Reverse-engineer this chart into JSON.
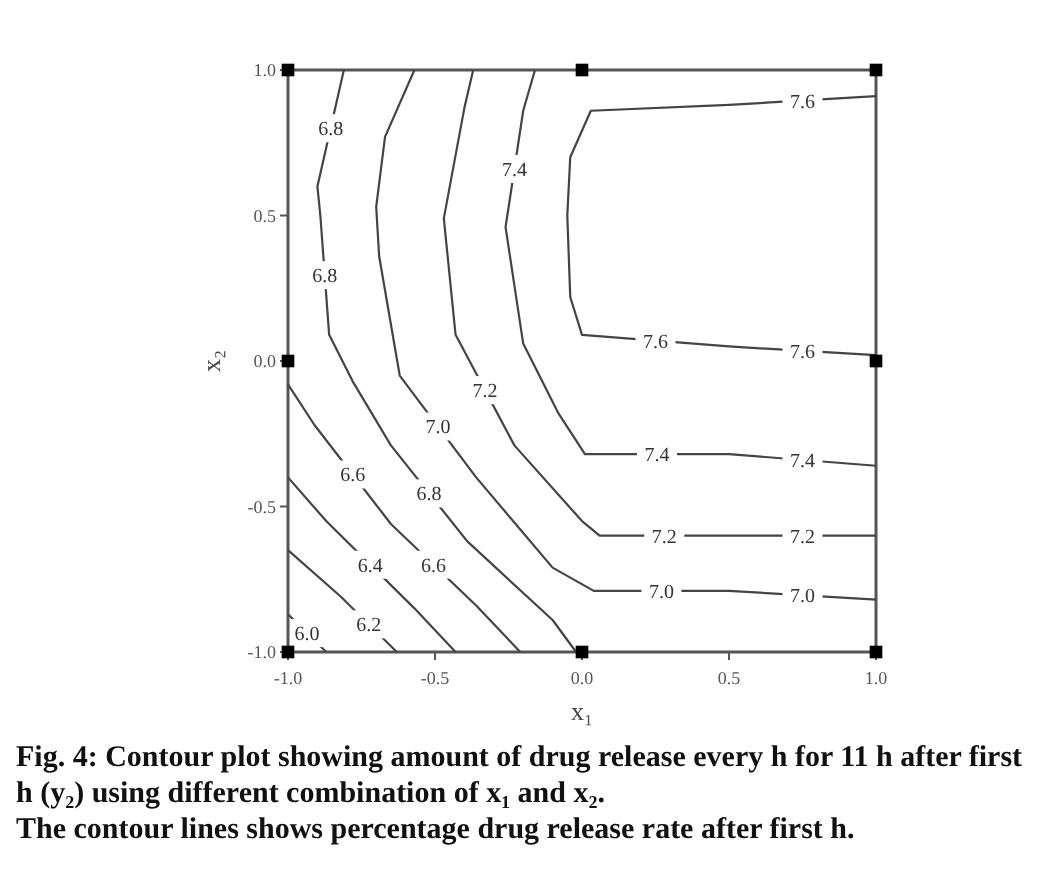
{
  "chart_data": {
    "type": "line",
    "xlabel": "x₁",
    "ylabel": "x₂",
    "xlim": [
      -1,
      1
    ],
    "ylim": [
      -1,
      1
    ],
    "xticks": [
      {
        "value": -1,
        "label": "-1.0"
      },
      {
        "value": -0.5,
        "label": "-0.5"
      },
      {
        "value": 0,
        "label": "0.0"
      },
      {
        "value": 0.5,
        "label": "0.5"
      },
      {
        "value": 1,
        "label": "1.0"
      }
    ],
    "yticks": [
      {
        "value": -1,
        "label": "-1.0"
      },
      {
        "value": -0.5,
        "label": "-0.5"
      },
      {
        "value": 0,
        "label": "0.0"
      },
      {
        "value": 0.5,
        "label": "0.5"
      },
      {
        "value": 1,
        "label": "1.0"
      }
    ],
    "marker": "none",
    "line_style": "solid",
    "grid": false,
    "series": [
      {
        "name": "6.0",
        "color": "#444444",
        "x": [
          -1,
          -0.87
        ],
        "values": [
          -0.87,
          -1
        ]
      },
      {
        "name": "6.2",
        "color": "#444444",
        "x": [
          -1,
          -0.82,
          -0.63
        ],
        "values": [
          -0.65,
          -0.81,
          -1
        ]
      },
      {
        "name": "6.4",
        "color": "#444444",
        "x": [
          -1,
          -0.87,
          -0.57,
          -0.43
        ],
        "values": [
          -0.4,
          -0.55,
          -0.85,
          -1
        ]
      },
      {
        "name": "6.6",
        "color": "#444444",
        "x": [
          -1,
          -0.91,
          -0.65,
          -0.36,
          -0.21
        ],
        "values": [
          -0.08,
          -0.22,
          -0.56,
          -0.84,
          -1
        ]
      },
      {
        "name": "6.8",
        "color": "#444444",
        "x": [
          -0.81,
          -0.9,
          -0.89,
          -0.86,
          -0.78,
          -0.65,
          -0.39,
          -0.1,
          -0.02
        ],
        "values": [
          1,
          0.6,
          0.5,
          0.09,
          -0.07,
          -0.29,
          -0.62,
          -0.89,
          -1
        ]
      },
      {
        "name": "7.0",
        "color": "#444444",
        "x": [
          -0.57,
          -0.67,
          -0.7,
          -0.69,
          -0.62,
          -0.36,
          -0.1,
          0.04,
          0.5,
          1
        ],
        "values": [
          1,
          0.77,
          0.53,
          0.36,
          -0.05,
          -0.4,
          -0.71,
          -0.79,
          -0.79,
          -0.82
        ]
      },
      {
        "name": "7.2",
        "color": "#444444",
        "x": [
          -0.37,
          -0.4,
          -0.47,
          -0.43,
          -0.23,
          0,
          0.06,
          0.5,
          1
        ],
        "values": [
          1,
          0.87,
          0.49,
          0.09,
          -0.29,
          -0.55,
          -0.6,
          -0.6,
          -0.6
        ]
      },
      {
        "name": "7.4",
        "color": "#444444",
        "x": [
          -0.16,
          -0.2,
          -0.26,
          -0.2,
          -0.08,
          0.01,
          0.5,
          1
        ],
        "values": [
          1,
          0.86,
          0.46,
          0.06,
          -0.18,
          -0.32,
          -0.32,
          -0.36
        ]
      },
      {
        "name": "7.6",
        "color": "#444444",
        "x": [
          1,
          0.5,
          0.03,
          -0.04,
          -0.05,
          -0.04,
          0,
          0.5,
          1
        ],
        "values": [
          0.91,
          0.88,
          0.86,
          0.7,
          0.5,
          0.22,
          0.09,
          0.05,
          0.02
        ]
      },
      {
        "type": "scatter",
        "marker": "square",
        "color": "#000000",
        "x": [
          -1,
          0,
          1,
          -1,
          1,
          -1,
          0,
          1
        ],
        "values": [
          1,
          1,
          1,
          0,
          0,
          -1,
          -1,
          -1
        ]
      }
    ],
    "annotations": [
      "Fig. 4: Contour plot showing amount of drug release every h for 11 h after first h (y₂) using different combination of x₁ and x₂.",
      "The contour lines shows percentage drug release rate after first h."
    ]
  }
}
